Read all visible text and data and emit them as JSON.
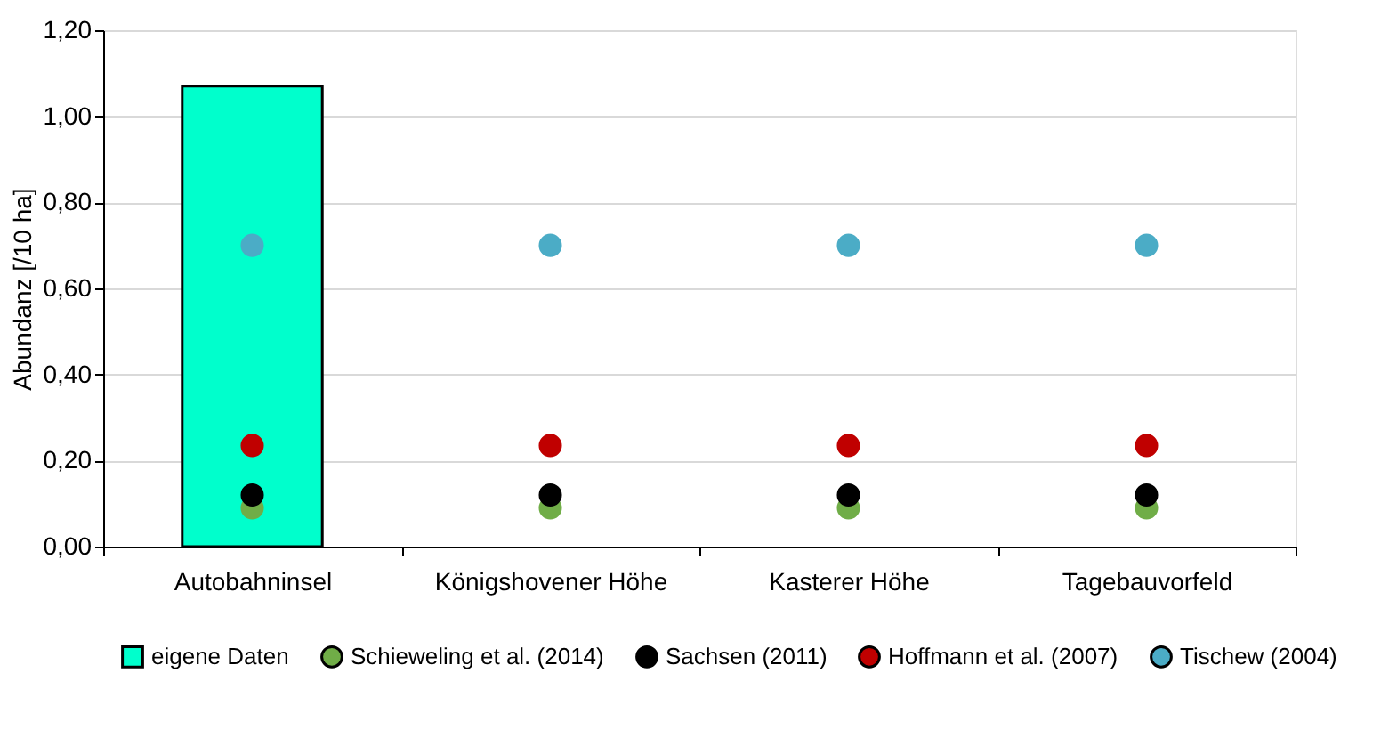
{
  "chart_data": {
    "type": "bar",
    "ylabel": "Abundanz [/10 ha]",
    "categories": [
      "Autobahninsel",
      "Königshovener Höhe",
      "Kasterer Höhe",
      "Tagebauvorfeld"
    ],
    "series": [
      {
        "name": "eigene Daten",
        "color": "#00ffcc",
        "values": [
          1.07,
          null,
          null,
          null
        ]
      },
      {
        "name": "Schieweling et al. (2014)",
        "type": "scatter",
        "color": "#70ad47",
        "values": [
          0.09,
          0.09,
          0.09,
          0.09
        ]
      },
      {
        "name": "Sachsen (2011)",
        "type": "scatter",
        "color": "#000000",
        "values": [
          0.12,
          0.12,
          0.12,
          0.12
        ]
      },
      {
        "name": "Hoffmann et al. (2007)",
        "type": "scatter",
        "color": "#c00000",
        "values": [
          0.235,
          0.235,
          0.235,
          0.235
        ]
      },
      {
        "name": "Tischew (2004)",
        "type": "scatter",
        "color": "#4bacc6",
        "values": [
          0.7,
          0.7,
          0.7,
          0.7
        ]
      }
    ],
    "ylim": [
      0,
      1.2
    ],
    "yticks": [
      {
        "value": 0,
        "label": "0,00"
      },
      {
        "value": 0.2,
        "label": "0,20"
      },
      {
        "value": 0.4,
        "label": "0,40"
      },
      {
        "value": 0.6,
        "label": "0,60"
      },
      {
        "value": 0.8,
        "label": "0,80"
      },
      {
        "value": 1.0,
        "label": "1,00"
      },
      {
        "value": 1.2,
        "label": "1,20"
      }
    ],
    "grid": "y",
    "legend": "bottom",
    "marker": "circle"
  }
}
